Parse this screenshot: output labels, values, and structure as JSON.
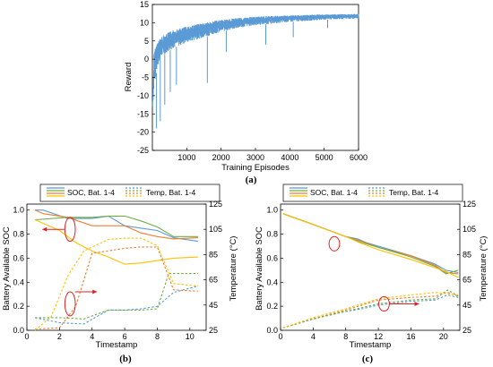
{
  "chart_data": [
    {
      "type": "line",
      "panel_label": "(a)",
      "xlabel": "Training Episodes",
      "ylabel": "Reward",
      "xlim": [
        0,
        6000
      ],
      "ylim": [
        -25,
        15
      ],
      "xticks": [
        1000,
        2000,
        3000,
        4000,
        5000,
        6000
      ],
      "yticks": [
        -25,
        -20,
        -15,
        -10,
        -5,
        0,
        5,
        10,
        15
      ],
      "grid": false,
      "color": "#5b9bd5",
      "series": [
        {
          "upper": [
            [
              0,
              -14
            ],
            [
              50,
              2
            ],
            [
              150,
              5
            ],
            [
              300,
              6.5
            ],
            [
              600,
              8
            ],
            [
              1000,
              9
            ],
            [
              1500,
              10
            ],
            [
              2000,
              10.8
            ],
            [
              2500,
              11.3
            ],
            [
              3000,
              11.7
            ],
            [
              4000,
              12
            ],
            [
              5000,
              12.3
            ],
            [
              6000,
              12.4
            ]
          ],
          "lower": [
            [
              0,
              -14
            ],
            [
              50,
              -8
            ],
            [
              150,
              -2
            ],
            [
              300,
              1
            ],
            [
              600,
              3
            ],
            [
              1000,
              4.5
            ],
            [
              1500,
              6
            ],
            [
              2000,
              7.5
            ],
            [
              2500,
              8.5
            ],
            [
              3000,
              9.3
            ],
            [
              4000,
              10.2
            ],
            [
              5000,
              10.8
            ],
            [
              6000,
              11.1
            ]
          ],
          "spikes": [
            [
              120,
              -19
            ],
            [
              230,
              -17
            ],
            [
              360,
              -12.5
            ],
            [
              520,
              -9
            ],
            [
              700,
              -7
            ],
            [
              1600,
              -6.5
            ],
            [
              2150,
              2
            ],
            [
              3300,
              4
            ],
            [
              4100,
              6
            ],
            [
              5100,
              8.5
            ]
          ]
        }
      ]
    },
    {
      "type": "line",
      "panel_label": "(b)",
      "xlabel": "Timestamp",
      "ylabel": "Battery Available SOC",
      "y2label": "Temperature (°C)",
      "xlim": [
        0,
        11
      ],
      "ylim": [
        0,
        1.05
      ],
      "y2lim": [
        25,
        125
      ],
      "xticks": [
        0,
        2,
        4,
        6,
        8,
        10
      ],
      "yticks": [
        0,
        0.2,
        0.4,
        0.6,
        0.8,
        1.0
      ],
      "y2ticks": [
        25,
        45,
        65,
        85,
        105,
        125
      ],
      "legend": [
        "SOC, Bat. 1-4",
        "Temp, Bat. 1-4"
      ],
      "legend_position": "top",
      "series": [
        {
          "color": "#5b9bd5",
          "axis": "left",
          "dash": false,
          "points": [
            [
              0.5,
              1.0
            ],
            [
              1,
              1.0
            ],
            [
              2.5,
              0.93
            ],
            [
              4,
              0.93
            ],
            [
              5,
              0.95
            ],
            [
              6,
              0.87
            ],
            [
              7,
              0.85
            ],
            [
              8,
              0.83
            ],
            [
              9,
              0.77
            ],
            [
              10.5,
              0.74
            ]
          ]
        },
        {
          "color": "#ed7d31",
          "axis": "left",
          "dash": false,
          "points": [
            [
              0.5,
              1.0
            ],
            [
              1,
              0.97
            ],
            [
              2.5,
              0.94
            ],
            [
              4,
              0.87
            ],
            [
              5,
              0.87
            ],
            [
              6,
              0.87
            ],
            [
              7,
              0.81
            ],
            [
              8,
              0.78
            ],
            [
              9,
              0.76
            ],
            [
              10.5,
              0.77
            ]
          ]
        },
        {
          "color": "#70ad47",
          "axis": "left",
          "dash": false,
          "points": [
            [
              0.5,
              0.92
            ],
            [
              2.5,
              0.94
            ],
            [
              4,
              0.94
            ],
            [
              5,
              0.95
            ],
            [
              6,
              0.95
            ],
            [
              7,
              0.91
            ],
            [
              8,
              0.86
            ],
            [
              9,
              0.78
            ],
            [
              10.5,
              0.78
            ]
          ]
        },
        {
          "color": "#ffc000",
          "axis": "left",
          "dash": false,
          "points": [
            [
              0.5,
              0.92
            ],
            [
              2,
              0.83
            ],
            [
              3,
              0.73
            ],
            [
              4,
              0.66
            ],
            [
              5,
              0.61
            ],
            [
              6,
              0.55
            ],
            [
              7,
              0.56
            ],
            [
              8,
              0.58
            ],
            [
              9,
              0.6
            ],
            [
              10.5,
              0.61
            ]
          ]
        },
        {
          "color": "#5b9bd5",
          "axis": "right",
          "dash": true,
          "points": [
            [
              0.5,
              35
            ],
            [
              2,
              31
            ],
            [
              3.5,
              30
            ],
            [
              5,
              41
            ],
            [
              6,
              41
            ],
            [
              7,
              42
            ],
            [
              8,
              44
            ],
            [
              9,
              55
            ],
            [
              10.5,
              60
            ]
          ]
        },
        {
          "color": "#ed7d31",
          "axis": "right",
          "dash": true,
          "points": [
            [
              0.5,
              26
            ],
            [
              2,
              27
            ],
            [
              3,
              44
            ],
            [
              4,
              86
            ],
            [
              5,
              88
            ],
            [
              6,
              90
            ],
            [
              7,
              91
            ],
            [
              8,
              91
            ],
            [
              9,
              57
            ],
            [
              10.5,
              56
            ]
          ]
        },
        {
          "color": "#70ad47",
          "axis": "right",
          "dash": true,
          "points": [
            [
              0.5,
              35
            ],
            [
              2,
              35
            ],
            [
              3.5,
              34
            ],
            [
              5,
              41
            ],
            [
              6,
              41
            ],
            [
              7,
              41
            ],
            [
              8,
              42
            ],
            [
              8.7,
              70
            ],
            [
              10.5,
              70
            ]
          ]
        },
        {
          "color": "#ffc000",
          "axis": "right",
          "dash": true,
          "points": [
            [
              0.5,
              25
            ],
            [
              1.5,
              36
            ],
            [
              2.5,
              68
            ],
            [
              3.5,
              88
            ],
            [
              5,
              97
            ],
            [
              6,
              98
            ],
            [
              7,
              98
            ],
            [
              8,
              92
            ],
            [
              9,
              62
            ],
            [
              10.5,
              60
            ]
          ]
        }
      ],
      "annotations": [
        {
          "ellipse": [
            2.65,
            0.84,
            0.32,
            0.1
          ],
          "arrow_from": [
            2.3,
            0.84
          ],
          "arrow_to": [
            0.95,
            0.84
          ]
        },
        {
          "ellipse": [
            2.65,
            0.22,
            0.32,
            0.1
          ],
          "arrow_from": [
            2.95,
            0.32
          ],
          "arrow_to": [
            4.3,
            0.32
          ]
        }
      ]
    },
    {
      "type": "line",
      "panel_label": "(c)",
      "xlabel": "Timestamp",
      "ylabel": "Battery Available SOC",
      "y2label": "Temperature (°C)",
      "xlim": [
        0,
        22
      ],
      "ylim": [
        0,
        1.05
      ],
      "y2lim": [
        25,
        125
      ],
      "xticks": [
        0,
        4,
        8,
        12,
        16,
        20
      ],
      "yticks": [
        0,
        0.2,
        0.4,
        0.6,
        0.8,
        1.0
      ],
      "y2ticks": [
        25,
        45,
        65,
        85,
        105,
        125
      ],
      "legend": [
        "SOC, Bat. 1-4",
        "Temp, Bat. 1-4"
      ],
      "legend_position": "top",
      "series": [
        {
          "color": "#5b9bd5",
          "axis": "left",
          "dash": false,
          "points": [
            [
              0.3,
              0.97
            ],
            [
              4,
              0.88
            ],
            [
              8,
              0.78
            ],
            [
              9.5,
              0.76
            ],
            [
              10.5,
              0.73
            ],
            [
              12,
              0.7
            ],
            [
              16,
              0.62
            ],
            [
              19,
              0.55
            ],
            [
              20.3,
              0.5
            ],
            [
              21.8,
              0.48
            ]
          ]
        },
        {
          "color": "#ed7d31",
          "axis": "left",
          "dash": false,
          "points": [
            [
              0.3,
              0.97
            ],
            [
              4,
              0.88
            ],
            [
              8,
              0.78
            ],
            [
              10,
              0.74
            ],
            [
              12,
              0.69
            ],
            [
              16,
              0.62
            ],
            [
              19,
              0.54
            ],
            [
              20.3,
              0.48
            ],
            [
              21.8,
              0.47
            ]
          ]
        },
        {
          "color": "#70ad47",
          "axis": "left",
          "dash": false,
          "points": [
            [
              0.3,
              0.97
            ],
            [
              4,
              0.88
            ],
            [
              8,
              0.78
            ],
            [
              10,
              0.73
            ],
            [
              12,
              0.69
            ],
            [
              16,
              0.61
            ],
            [
              19,
              0.53
            ],
            [
              20.3,
              0.47
            ],
            [
              21.8,
              0.5
            ]
          ]
        },
        {
          "color": "#ffc000",
          "axis": "left",
          "dash": false,
          "points": [
            [
              0.3,
              0.97
            ],
            [
              4,
              0.88
            ],
            [
              8,
              0.78
            ],
            [
              10,
              0.72
            ],
            [
              12,
              0.67
            ],
            [
              16,
              0.59
            ],
            [
              19,
              0.52
            ],
            [
              20.3,
              0.49
            ],
            [
              21.8,
              0.44
            ]
          ]
        },
        {
          "color": "#5b9bd5",
          "axis": "right",
          "dash": true,
          "points": [
            [
              0.3,
              27
            ],
            [
              4,
              34
            ],
            [
              8,
              40
            ],
            [
              10,
              42
            ],
            [
              12,
              45
            ],
            [
              16,
              48
            ],
            [
              19,
              49
            ],
            [
              20.5,
              53
            ],
            [
              21.8,
              51
            ]
          ]
        },
        {
          "color": "#ed7d31",
          "axis": "right",
          "dash": true,
          "points": [
            [
              0.3,
              27
            ],
            [
              4,
              34
            ],
            [
              8,
              41
            ],
            [
              10,
              45
            ],
            [
              12,
              49
            ],
            [
              16,
              51
            ],
            [
              19,
              52
            ],
            [
              20.5,
              55
            ],
            [
              21.8,
              52
            ]
          ]
        },
        {
          "color": "#70ad47",
          "axis": "right",
          "dash": true,
          "points": [
            [
              0.3,
              27
            ],
            [
              4,
              34
            ],
            [
              8,
              40
            ],
            [
              10,
              43
            ],
            [
              12,
              46
            ],
            [
              16,
              49
            ],
            [
              19,
              50
            ],
            [
              20.5,
              57
            ],
            [
              21.8,
              52
            ]
          ]
        },
        {
          "color": "#ffc000",
          "axis": "right",
          "dash": true,
          "points": [
            [
              0.3,
              27
            ],
            [
              4,
              35
            ],
            [
              8,
              42
            ],
            [
              10,
              46
            ],
            [
              12,
              50
            ],
            [
              16,
              53
            ],
            [
              19,
              55
            ],
            [
              20.5,
              54
            ],
            [
              21.8,
              53
            ]
          ]
        }
      ],
      "annotations": [
        {
          "ellipse": [
            6.6,
            0.72,
            0.65,
            0.06
          ],
          "arrow_from": null,
          "arrow_to": null
        },
        {
          "ellipse": [
            12.7,
            0.22,
            0.65,
            0.06
          ],
          "arrow_from": [
            13.4,
            0.22
          ],
          "arrow_to": [
            17,
            0.22
          ]
        }
      ]
    }
  ]
}
